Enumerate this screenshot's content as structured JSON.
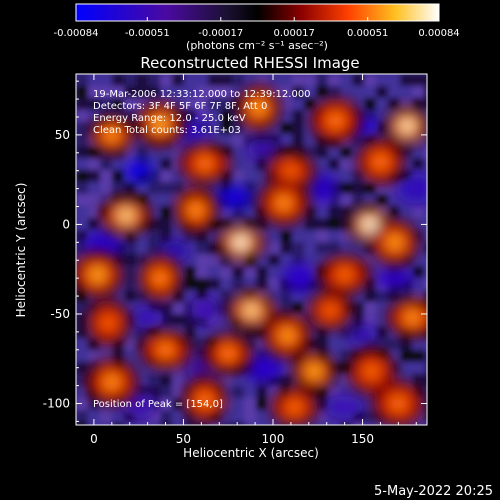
{
  "chart_data": {
    "type": "heatmap",
    "title": "Reconstructed RHESSI Image",
    "xlabel": "Heliocentric X (arcsec)",
    "ylabel": "Heliocentric Y (arcsec)",
    "xlim": [
      -10,
      186
    ],
    "ylim": [
      -112,
      84
    ],
    "xticks": [
      0,
      50,
      100,
      150
    ],
    "yticks": [
      -100,
      -50,
      0,
      50
    ],
    "colorbar": {
      "ticks": [
        "-0.00084",
        "-0.00051",
        "-0.00017",
        "0.00017",
        "0.00051",
        "0.00084"
      ],
      "min": -0.00084,
      "max": 0.00084,
      "units": "(photons cm⁻² s⁻¹ asec⁻²)",
      "colors": [
        "#0000ff",
        "#4000a0",
        "#2a1050",
        "#0a0a0a",
        "#6a0000",
        "#c02000",
        "#ff6a00",
        "#ffcc20",
        "#ffff90",
        "#ffffff"
      ]
    },
    "annotations": [
      "19-Mar-2006 12:33:12.000 to 12:39:12.000",
      "Detectors: 3F 4F 5F 6F 7F 8F, Att 0",
      "Energy Range: 12.0 - 25.0 keV",
      "Clean     Total counts: 3.61E+03"
    ],
    "peak_text": "Position of Peak = [154,0]",
    "peak": [
      154,
      0
    ],
    "bright_sources": [
      {
        "x": 10,
        "y": 50,
        "v": 0.0006
      },
      {
        "x": 37,
        "y": 56,
        "v": 0.00066
      },
      {
        "x": 62,
        "y": 34,
        "v": 0.00055
      },
      {
        "x": 92,
        "y": 65,
        "v": 0.00062
      },
      {
        "x": 110,
        "y": 30,
        "v": 0.0005
      },
      {
        "x": 135,
        "y": 58,
        "v": 0.00056
      },
      {
        "x": 175,
        "y": 55,
        "v": 0.0008
      },
      {
        "x": 160,
        "y": 35,
        "v": 0.00055
      },
      {
        "x": 18,
        "y": 5,
        "v": 0.00075
      },
      {
        "x": 57,
        "y": 8,
        "v": 0.0006
      },
      {
        "x": 82,
        "y": -10,
        "v": 0.00084
      },
      {
        "x": 106,
        "y": 12,
        "v": 0.0006
      },
      {
        "x": 154,
        "y": 0,
        "v": 0.00084
      },
      {
        "x": 168,
        "y": -10,
        "v": 0.00062
      },
      {
        "x": 140,
        "y": -28,
        "v": 0.00052
      },
      {
        "x": 37,
        "y": -30,
        "v": 0.00058
      },
      {
        "x": 88,
        "y": -48,
        "v": 0.00076
      },
      {
        "x": 2,
        "y": -28,
        "v": 0.00064
      },
      {
        "x": 132,
        "y": -48,
        "v": 0.0005
      },
      {
        "x": 108,
        "y": -62,
        "v": 0.00062
      },
      {
        "x": 40,
        "y": -70,
        "v": 0.00057
      },
      {
        "x": 8,
        "y": -55,
        "v": 0.0005
      },
      {
        "x": 75,
        "y": -72,
        "v": 0.00056
      },
      {
        "x": 10,
        "y": -88,
        "v": 0.0006
      },
      {
        "x": 123,
        "y": -82,
        "v": 0.00064
      },
      {
        "x": 155,
        "y": -82,
        "v": 0.00052
      },
      {
        "x": 178,
        "y": -52,
        "v": 0.0006
      },
      {
        "x": 62,
        "y": -98,
        "v": 0.00055
      },
      {
        "x": 112,
        "y": -102,
        "v": 0.00052
      },
      {
        "x": 170,
        "y": -100,
        "v": 0.00054
      }
    ],
    "dim_sources": [
      {
        "x": 25,
        "y": 30,
        "v": -0.00075
      },
      {
        "x": 55,
        "y": 52,
        "v": -0.00055
      },
      {
        "x": 78,
        "y": 15,
        "v": -0.0007
      },
      {
        "x": 128,
        "y": 20,
        "v": -0.0006
      },
      {
        "x": 150,
        "y": 55,
        "v": -0.00065
      },
      {
        "x": 5,
        "y": -12,
        "v": -0.0006
      },
      {
        "x": 45,
        "y": -15,
        "v": -0.00055
      },
      {
        "x": 115,
        "y": -30,
        "v": -0.0006
      },
      {
        "x": 168,
        "y": -30,
        "v": -0.00058
      },
      {
        "x": 62,
        "y": -48,
        "v": -0.0005
      },
      {
        "x": 30,
        "y": -52,
        "v": -0.00052
      },
      {
        "x": 95,
        "y": -80,
        "v": -0.0006
      },
      {
        "x": 150,
        "y": -62,
        "v": -0.00052
      },
      {
        "x": 25,
        "y": -100,
        "v": -0.00048
      },
      {
        "x": 140,
        "y": -102,
        "v": -0.00052
      },
      {
        "x": 60,
        "y": -80,
        "v": -0.00045
      },
      {
        "x": 95,
        "y": 42,
        "v": -0.0005
      },
      {
        "x": 180,
        "y": 20,
        "v": -0.00055
      }
    ]
  },
  "footer": {
    "date": "5-May-2022 20:25"
  }
}
